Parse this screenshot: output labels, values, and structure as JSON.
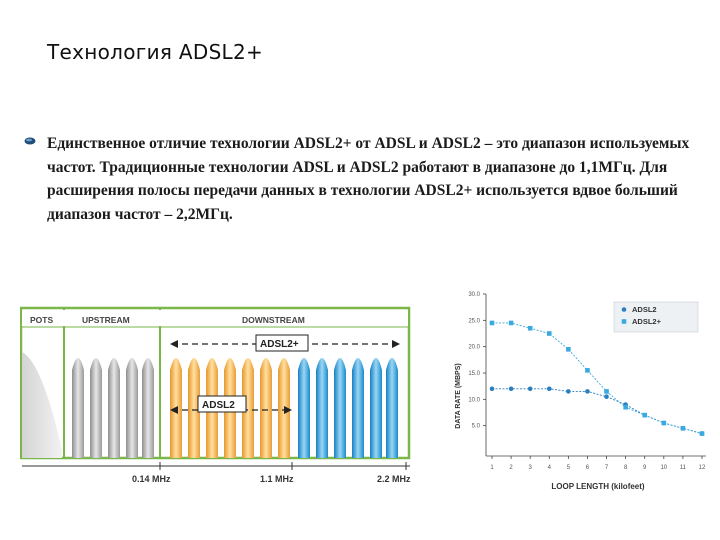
{
  "slide": {
    "title": "Технология ADSL2+",
    "paragraph": "Единственное отличие технологии ADSL2+ от ADSL и ADSL2 – это диапазон используемых частот. Традиционные технологии ADSL и ADSL2 работают в диапазоне до 1,1МГц. Для расширения полосы передачи данных в технологии ADSL2+ используется вдвое больший диапазон частот – 2,2МГц."
  },
  "spectrum": {
    "band_pots": "POTS",
    "band_upstream": "UPSTREAM",
    "band_downstream": "DOWNSTREAM",
    "label_adsl2plus": "ADSL2+",
    "label_adsl2": "ADSL2",
    "freq_1": "0.14 MHz",
    "freq_2": "1.1 MHz",
    "freq_3": "2.2 MHz",
    "colors": {
      "border": "#7ab648",
      "pots": "#cccccc",
      "upstream": "#b8b8b8",
      "adsl2": "#f2b84b",
      "adsl2plus": "#3aa9e0"
    }
  },
  "chart_data": {
    "type": "line",
    "xlabel": "LOOP LENGTH (kilofeet)",
    "ylabel": "DATA RATE (MBPS)",
    "x": [
      1,
      2,
      3,
      4,
      5,
      6,
      7,
      8,
      9,
      10,
      11,
      12
    ],
    "x_ticks": [
      "1",
      "2",
      "3",
      "4",
      "5",
      "6",
      "7",
      "8",
      "9",
      "10",
      "11",
      "12"
    ],
    "y_ticks": [
      "5.0",
      "10.0",
      "15.0",
      "20.0",
      "25.0",
      "30.0"
    ],
    "xlim": [
      1,
      12
    ],
    "ylim": [
      0,
      30
    ],
    "legend_position": "top-right",
    "series": [
      {
        "name": "ADSL2",
        "marker": "circle",
        "color": "#2a7fc0",
        "values": [
          12.0,
          12.0,
          12.0,
          12.0,
          11.5,
          11.5,
          10.5,
          9.0,
          7.0,
          5.5,
          4.5,
          3.5
        ]
      },
      {
        "name": "ADSL2+",
        "marker": "square",
        "color": "#3aa9e0",
        "values": [
          24.5,
          24.5,
          23.5,
          22.5,
          19.5,
          15.5,
          11.5,
          8.5,
          7.0,
          5.5,
          4.5,
          3.5
        ]
      }
    ]
  }
}
